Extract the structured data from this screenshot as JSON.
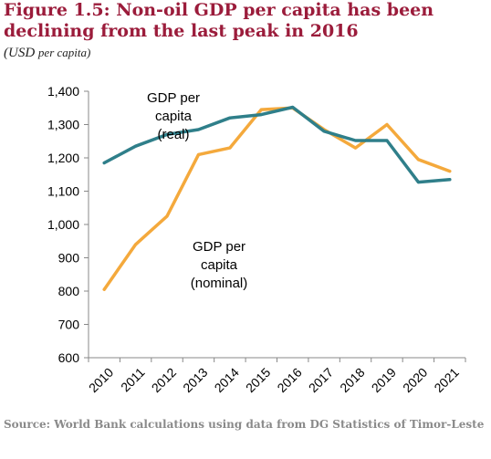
{
  "title": "Figure 1.5: Non-oil GDP per capita has been declining from the last peak in 2016",
  "subtitle_prefix": "(USD ",
  "subtitle_unit": "per capita)",
  "source": "Source: World Bank calculations using data from DG Statistics of Timor-Leste",
  "chart_data": {
    "type": "line",
    "title": "",
    "xlabel": "",
    "ylabel": "",
    "x": [
      "2010",
      "2011",
      "2012",
      "2013",
      "2014",
      "2015",
      "2016",
      "2017",
      "2018",
      "2019",
      "2020",
      "2021"
    ],
    "ylim": [
      600,
      1400
    ],
    "yticks": [
      "600",
      "700",
      "800",
      "900",
      "1,000",
      "1,100",
      "1,200",
      "1,300",
      "1,400"
    ],
    "grid": false,
    "legend": "none",
    "series": [
      {
        "name": "GDP per capita (real)",
        "label_lines": [
          "GDP per",
          "capita",
          "(real)"
        ],
        "color": "#2F7F8A",
        "values": [
          1185,
          1235,
          1270,
          1285,
          1320,
          1330,
          1352,
          1280,
          1252,
          1252,
          1127,
          1135
        ]
      },
      {
        "name": "GDP per capita (nominal)",
        "label_lines": [
          "GDP per",
          "capita",
          "(nominal)"
        ],
        "color": "#F4A93C",
        "values": [
          805,
          940,
          1025,
          1210,
          1230,
          1345,
          1350,
          1285,
          1230,
          1300,
          1195,
          1160
        ]
      }
    ]
  }
}
